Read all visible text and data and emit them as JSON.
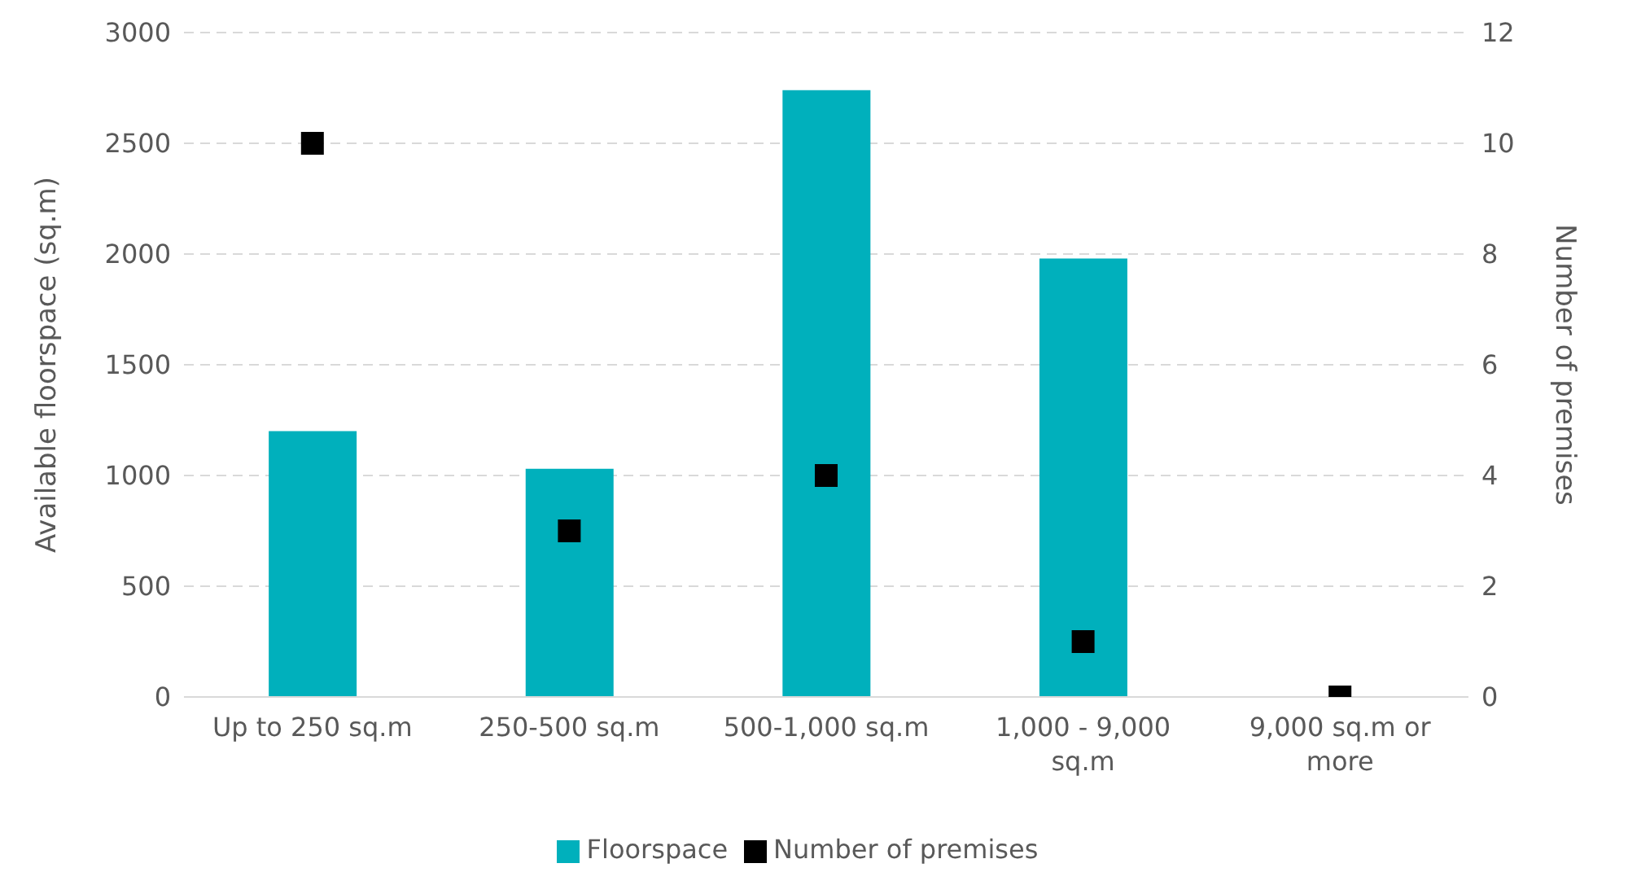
{
  "chart_data": {
    "type": "bar",
    "categories": [
      "Up to 250 sq.m",
      "250-500 sq.m",
      "500-1,000 sq.m",
      "1,000 - 9,000 sq.m",
      "9,000 sq.m or more"
    ],
    "series": [
      {
        "name": "Floorspace",
        "color": "#00b0bc",
        "values": [
          1200,
          1030,
          2740,
          1980,
          0
        ]
      },
      {
        "name": "Number of premises",
        "type": "scatter",
        "axis": "y2",
        "color": "#000000",
        "marker": "square",
        "values": [
          10,
          3,
          4,
          1,
          0
        ]
      }
    ],
    "ylabel": "Available floorspace (sq.m)",
    "y2label": "Number of premises",
    "ylim": [
      0,
      3000
    ],
    "yticks": [
      0,
      500,
      1000,
      1500,
      2000,
      2500,
      3000
    ],
    "y2lim": [
      0,
      12
    ],
    "y2ticks": [
      0,
      2,
      4,
      6,
      8,
      10,
      12
    ],
    "grid": "y",
    "legend": "bottom"
  }
}
